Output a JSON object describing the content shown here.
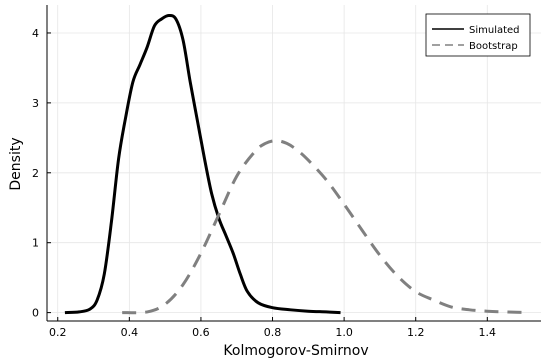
{
  "chart_data": {
    "type": "line",
    "title": "",
    "xlabel": "Kolmogorov-Smirnov",
    "ylabel": "Density",
    "xlim": [
      0.17,
      1.55
    ],
    "ylim": [
      -0.12,
      4.4
    ],
    "xticks": [
      0.2,
      0.4,
      0.6,
      0.8,
      1.0,
      1.2,
      1.4
    ],
    "xtick_labels": [
      "0.2",
      "0.4",
      "0.6",
      "0.8",
      "1.0",
      "1.2",
      "1.4"
    ],
    "yticks": [
      0,
      1,
      2,
      3,
      4
    ],
    "ytick_labels": [
      "0",
      "1",
      "2",
      "3",
      "4"
    ],
    "grid": true,
    "legend_position": "top-right",
    "series": [
      {
        "name": "Simulated",
        "color": "#000000",
        "style": "solid",
        "x": [
          0.22,
          0.26,
          0.29,
          0.31,
          0.33,
          0.35,
          0.37,
          0.39,
          0.41,
          0.43,
          0.45,
          0.47,
          0.49,
          0.51,
          0.53,
          0.55,
          0.57,
          0.59,
          0.61,
          0.63,
          0.65,
          0.67,
          0.69,
          0.71,
          0.73,
          0.76,
          0.8,
          0.85,
          0.9,
          0.95,
          0.99
        ],
        "y": [
          0.0,
          0.01,
          0.05,
          0.18,
          0.55,
          1.3,
          2.2,
          2.8,
          3.3,
          3.55,
          3.8,
          4.1,
          4.2,
          4.25,
          4.2,
          3.9,
          3.3,
          2.75,
          2.2,
          1.7,
          1.35,
          1.1,
          0.85,
          0.55,
          0.3,
          0.14,
          0.07,
          0.04,
          0.02,
          0.01,
          0.0
        ]
      },
      {
        "name": "Bootstrap",
        "color": "#808080",
        "style": "dashed",
        "x": [
          0.38,
          0.45,
          0.5,
          0.55,
          0.6,
          0.65,
          0.7,
          0.75,
          0.78,
          0.81,
          0.84,
          0.87,
          0.9,
          0.95,
          1.0,
          1.05,
          1.1,
          1.15,
          1.2,
          1.25,
          1.3,
          1.35,
          1.4,
          1.45,
          1.52
        ],
        "y": [
          0.0,
          0.01,
          0.12,
          0.4,
          0.85,
          1.4,
          1.95,
          2.3,
          2.42,
          2.46,
          2.42,
          2.32,
          2.18,
          1.9,
          1.55,
          1.18,
          0.82,
          0.52,
          0.3,
          0.18,
          0.08,
          0.04,
          0.02,
          0.01,
          0.0
        ]
      }
    ]
  }
}
